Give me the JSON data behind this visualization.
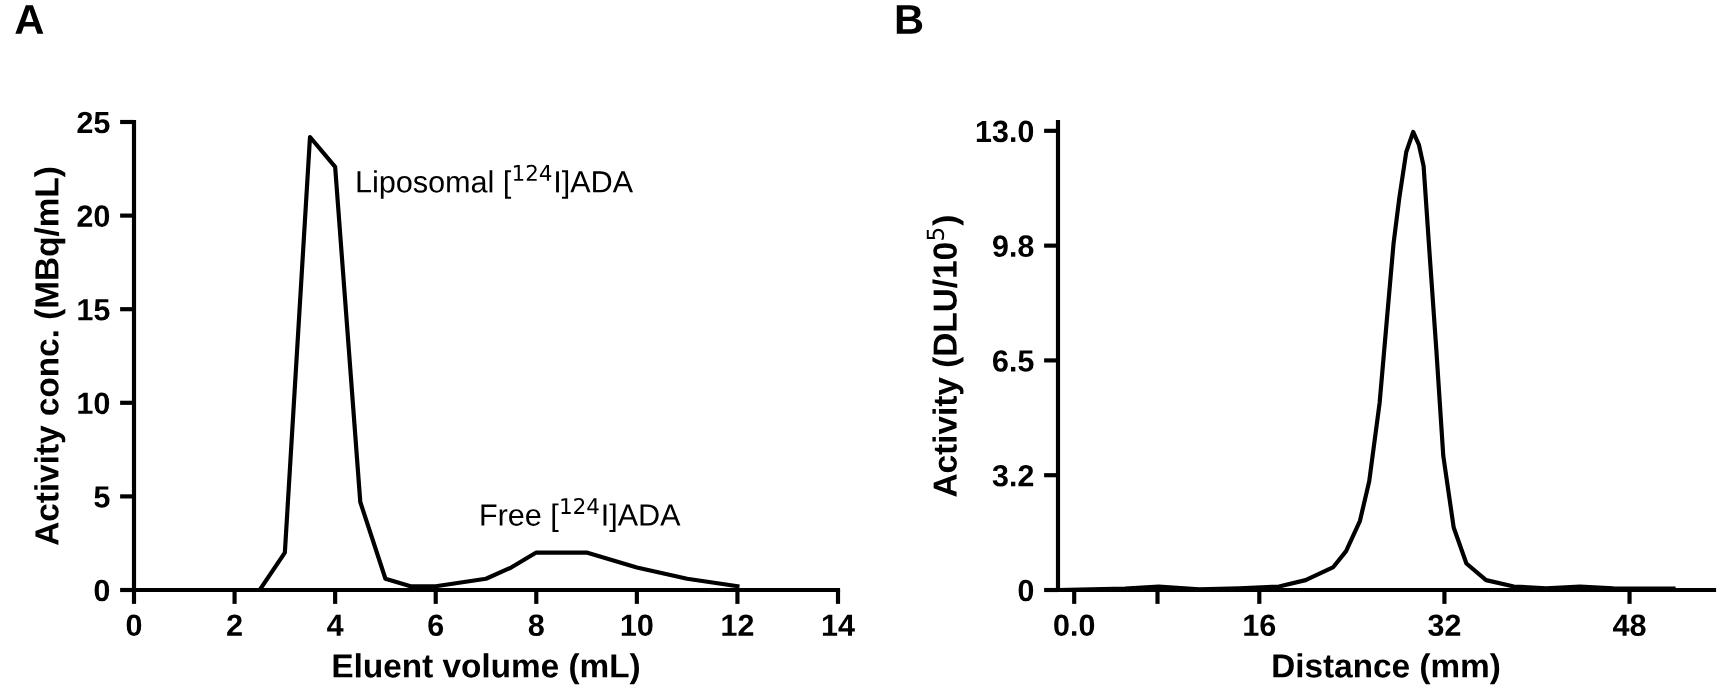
{
  "chart_data": [
    {
      "type": "line",
      "title": "A",
      "xlabel": "Eluent volume (mL)",
      "ylabel": "Activity conc. (MBq/mL)",
      "x": [
        1,
        2.5,
        3.0,
        3.5,
        4.0,
        4.5,
        5.0,
        5.5,
        6.0,
        7.0,
        7.5,
        8.0,
        9.0,
        10.0,
        11.0,
        12.0
      ],
      "series": [
        {
          "color": "#000000",
          "values": [
            0,
            0,
            2.0,
            24.2,
            22.6,
            4.7,
            0.6,
            0.2,
            0.2,
            0.6,
            1.2,
            2.0,
            2.0,
            1.2,
            0.6,
            0.2
          ]
        }
      ],
      "xlim": [
        0,
        14
      ],
      "xticks": [
        0,
        2,
        4,
        6,
        8,
        10,
        12,
        14
      ],
      "ylim": [
        0,
        25
      ],
      "yticks": [
        0,
        5,
        10,
        15,
        20,
        25
      ],
      "annotations": [
        "Liposomal [$^{124}$I]ADA",
        "Free [$^{124}$I]ADA"
      ],
      "grid": false,
      "legend": false,
      "marker": "none",
      "line_style": "solid"
    },
    {
      "type": "line",
      "title": "B",
      "xlabel": "Distance (mm)",
      "ylabel": "Activity (DLU/10$^{5}$)",
      "x": [
        -1.4,
        4.4,
        7.3,
        10.8,
        14.3,
        17.7,
        20.0,
        22.4,
        23.5,
        24.7,
        25.5,
        26.4,
        27.0,
        27.6,
        28.1,
        28.7,
        29.3,
        29.8,
        30.2,
        30.7,
        31.3,
        31.9,
        32.8,
        33.9,
        35.6,
        38.0,
        40.8,
        43.7,
        46.6,
        51.8
      ],
      "series": [
        {
          "color": "#000000",
          "values": [
            0,
            0.04,
            0.1,
            0.02,
            0.05,
            0.1,
            0.28,
            0.65,
            1.1,
            1.96,
            3.08,
            5.3,
            7.56,
            9.8,
            11.1,
            12.4,
            12.97,
            12.6,
            12.0,
            9.6,
            6.8,
            3.8,
            1.77,
            0.75,
            0.28,
            0.1,
            0.05,
            0.1,
            0.05,
            0.04
          ]
        }
      ],
      "xlim": [
        -1.4,
        55.3
      ],
      "xticks": [
        {
          "value": 0,
          "label": "0.0"
        },
        {
          "value": 7.2,
          "label": null
        },
        16,
        32,
        48
      ],
      "ylim": [
        0,
        13.25
      ],
      "yticks": [
        0,
        {
          "value": 3.25,
          "label": "3.2"
        },
        6.5,
        {
          "value": 9.75,
          "label": "9.8"
        },
        {
          "value": 13,
          "label": "13.0"
        }
      ],
      "grid": false,
      "legend": false,
      "marker": "none",
      "line_style": "solid"
    }
  ]
}
